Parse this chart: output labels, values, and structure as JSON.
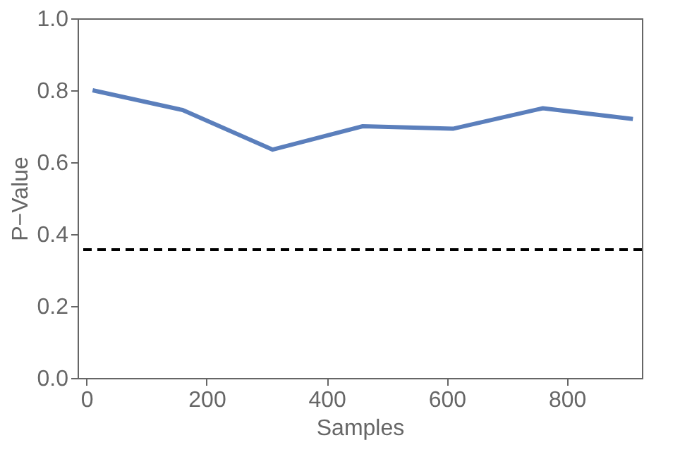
{
  "chart_data": {
    "type": "line",
    "xlabel": "Samples",
    "ylabel": "P−Value",
    "x": [
      10,
      160,
      310,
      460,
      610,
      760,
      910
    ],
    "series": [
      {
        "color": "#5b7fbc",
        "values": [
          0.8,
          0.745,
          0.635,
          0.7,
          0.693,
          0.75,
          0.72
        ]
      }
    ],
    "xlim": [
      -15,
      925
    ],
    "xticks": [
      0,
      200,
      400,
      600,
      800
    ],
    "ylim": [
      0,
      1
    ],
    "yticks": [
      {
        "value": 0,
        "label": "0.0"
      },
      0.2,
      0.4,
      0.6,
      0.8,
      {
        "value": 1,
        "label": "1.0"
      }
    ],
    "ref_lines": [
      {
        "axis": "y",
        "value": 0.357,
        "color": "#000000",
        "line_style": "dashed"
      }
    ],
    "grid": false,
    "marker": "none",
    "line_style": "solid"
  }
}
